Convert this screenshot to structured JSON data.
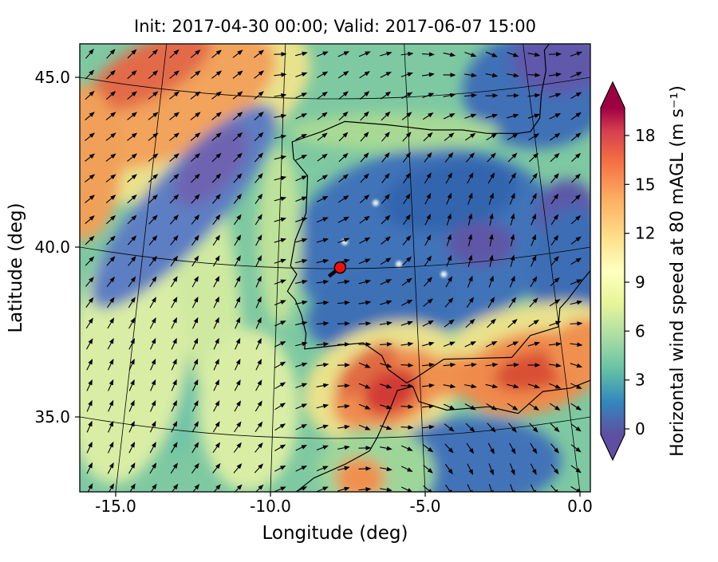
{
  "figure": {
    "title": "Init: 2017-04-30 00:00; Valid: 2017-06-07 15:00",
    "init_time": "2017-04-30 00:00",
    "valid_time": "2017-06-07 15:00",
    "xlabel": "Longitude (deg)",
    "ylabel": "Latitude (deg)"
  },
  "chart_data": {
    "type": "heatmap",
    "subtype": "geographic wind-speed map with quiver (wind vector) overlay over the Iberian Peninsula and NW Africa",
    "title": "Init: 2017-04-30 00:00; Valid: 2017-06-07 15:00",
    "xlabel": "Longitude (deg)",
    "ylabel": "Latitude (deg)",
    "xlim": [
      -16.2,
      0.35
    ],
    "ylim": [
      32.8,
      46.05
    ],
    "x_ticks": [
      -15.0,
      -10.0,
      -5.0,
      0.0
    ],
    "x_tick_labels": [
      "-15.0",
      "-10.0",
      "-5.0",
      "0.0"
    ],
    "y_ticks": [
      35.0,
      40.0,
      45.0
    ],
    "y_tick_labels": [
      "35.0",
      "40.0",
      "45.0"
    ],
    "grid": true,
    "legend_position": "right-colorbar",
    "colorbar": {
      "label": "Horizontal wind speed at 80 mAGL (m s⁻¹)",
      "units": "m s-1",
      "ticks": [
        0,
        3,
        6,
        9,
        12,
        15,
        18
      ],
      "tick_labels": [
        "0",
        "3",
        "6",
        "9",
        "12",
        "15",
        "18"
      ],
      "vmin": 0,
      "vmax": 19.7,
      "cmap": "Spectral_r",
      "extend": "both",
      "over_color": "#9e0142",
      "under_color": "#5e4fa2",
      "gradient": [
        [
          0.0,
          "#5e4fa2"
        ],
        [
          0.1,
          "#3288bd"
        ],
        [
          0.2,
          "#66c2a5"
        ],
        [
          0.3,
          "#abdda4"
        ],
        [
          0.4,
          "#e6f598"
        ],
        [
          0.5,
          "#ffffbf"
        ],
        [
          0.6,
          "#fee08b"
        ],
        [
          0.72,
          "#fdae61"
        ],
        [
          0.84,
          "#f46d43"
        ],
        [
          0.93,
          "#d53e4f"
        ],
        [
          1.0,
          "#9e0142"
        ]
      ]
    },
    "marker": {
      "name": "site-location",
      "lon": -7.75,
      "lat": 39.4,
      "color": "#f10e0e",
      "edge": "#000000"
    },
    "base_field": {
      "speed_ms": 5.5,
      "color": "#7ec9a2"
    },
    "field_regions": [
      {
        "name": "atlantic-teal-band",
        "lon": -13.4,
        "lat": 38.0,
        "rx_deg": 0.95,
        "ry_deg": 4.2,
        "rot_deg": -5,
        "color": "#6fc4a9",
        "speed_ms": 5
      },
      {
        "name": "atlantic-yellowgreen-west",
        "lon": -14.6,
        "lat": 36.8,
        "rx_deg": 1.9,
        "ry_deg": 3.8,
        "rot_deg": 8,
        "color": "#d9eda5",
        "speed_ms": 8
      },
      {
        "name": "atlantic-yellowgreen-mid",
        "lon": -12.1,
        "lat": 39.2,
        "rx_deg": 1.0,
        "ry_deg": 4.6,
        "rot_deg": -8,
        "color": "#cfe9a0",
        "speed_ms": 7.5
      },
      {
        "name": "atlantic-yellowgreen-south",
        "lon": -10.7,
        "lat": 35.2,
        "rx_deg": 1.6,
        "ry_deg": 2.4,
        "rot_deg": 0,
        "color": "#d9eda5",
        "speed_ms": 8
      },
      {
        "name": "nw-yellow-fringe",
        "lon": -12.9,
        "lat": 43.9,
        "rx_deg": 4.6,
        "ry_deg": 2.0,
        "rot_deg": -28,
        "color": "#e9e28c",
        "speed_ms": 10
      },
      {
        "name": "nw-orange-band",
        "lon": -13.1,
        "lat": 44.3,
        "rx_deg": 3.6,
        "ry_deg": 1.5,
        "rot_deg": -28,
        "color": "#f2a35c",
        "speed_ms": 13
      },
      {
        "name": "nw-orange-core",
        "lon": -13.9,
        "lat": 45.2,
        "rx_deg": 2.2,
        "ry_deg": 0.8,
        "rot_deg": -28,
        "color": "#e26a4a",
        "speed_ms": 15
      },
      {
        "name": "west-edge-orange",
        "lon": -16.1,
        "lat": 42.5,
        "rx_deg": 1.3,
        "ry_deg": 2.3,
        "rot_deg": 0,
        "color": "#f0a058",
        "speed_ms": 13
      },
      {
        "name": "nw-blue-band",
        "lon": -12.8,
        "lat": 41.2,
        "rx_deg": 4.3,
        "ry_deg": 1.1,
        "rot_deg": -48,
        "color": "#5d7ec2",
        "speed_ms": 3.5
      },
      {
        "name": "nw-purple-streak",
        "lon": -11.9,
        "lat": 42.4,
        "rx_deg": 1.6,
        "ry_deg": 0.7,
        "rot_deg": -48,
        "color": "#6e64b0",
        "speed_ms": 1.5
      },
      {
        "name": "iberia-interior-blue",
        "lon": -5.0,
        "lat": 40.2,
        "rx_deg": 4.4,
        "ry_deg": 2.7,
        "rot_deg": -8,
        "color": "#4173b8",
        "speed_ms": 3
      },
      {
        "name": "iberia-north-dark-blue",
        "lon": -4.2,
        "lat": 41.5,
        "rx_deg": 2.2,
        "ry_deg": 1.0,
        "rot_deg": -10,
        "color": "#3365ad",
        "speed_ms": 2
      },
      {
        "name": "iberia-purple-patch",
        "lon": -3.2,
        "lat": 40.1,
        "rx_deg": 1.1,
        "ry_deg": 0.65,
        "rot_deg": 0,
        "color": "#5f57a6",
        "speed_ms": 1
      },
      {
        "name": "southwest-iberia-blue",
        "lon": -6.5,
        "lat": 38.2,
        "rx_deg": 2.4,
        "ry_deg": 1.2,
        "rot_deg": -15,
        "color": "#3e70b5",
        "speed_ms": 3
      },
      {
        "name": "biscay-blue",
        "lon": -1.4,
        "lat": 44.6,
        "rx_deg": 2.4,
        "ry_deg": 1.7,
        "rot_deg": 0,
        "color": "#3f6fb6",
        "speed_ms": 3
      },
      {
        "name": "biscay-purple",
        "lon": -0.7,
        "lat": 45.5,
        "rx_deg": 1.5,
        "ry_deg": 1.0,
        "rot_deg": 0,
        "color": "#6058aa",
        "speed_ms": 1
      },
      {
        "name": "east-spain-purple",
        "lon": -0.4,
        "lat": 40.9,
        "rx_deg": 1.0,
        "ry_deg": 1.1,
        "rot_deg": 0,
        "color": "#5d58a9",
        "speed_ms": 1
      },
      {
        "name": "mediterranean-blue",
        "lon": -0.2,
        "lat": 39.0,
        "rx_deg": 1.4,
        "ry_deg": 2.2,
        "rot_deg": 0,
        "color": "#3e6db4",
        "speed_ms": 3
      },
      {
        "name": "north-coast-green",
        "lon": -6.0,
        "lat": 43.4,
        "rx_deg": 3.4,
        "ry_deg": 0.55,
        "rot_deg": 0,
        "color": "#a8d994",
        "speed_ms": 7
      },
      {
        "name": "portugal-coast-green",
        "lon": -9.7,
        "lat": 40.3,
        "rx_deg": 0.7,
        "ry_deg": 2.6,
        "rot_deg": 0,
        "color": "#bfe29a",
        "speed_ms": 7
      },
      {
        "name": "strait-yellow-halo",
        "lon": -6.3,
        "lat": 36.0,
        "rx_deg": 2.7,
        "ry_deg": 1.7,
        "rot_deg": -20,
        "color": "#e9e28c",
        "speed_ms": 10
      },
      {
        "name": "algeria-yellow-fringe",
        "lon": -1.6,
        "lat": 37.5,
        "rx_deg": 2.6,
        "ry_deg": 0.8,
        "rot_deg": -10,
        "color": "#e9e28c",
        "speed_ms": 10
      },
      {
        "name": "strait-orange-halo",
        "lon": -6.2,
        "lat": 35.8,
        "rx_deg": 1.9,
        "ry_deg": 1.1,
        "rot_deg": -25,
        "color": "#ef8c4f",
        "speed_ms": 13
      },
      {
        "name": "cadiz-orange-streak",
        "lon": -6.9,
        "lat": 36.4,
        "rx_deg": 1.2,
        "ry_deg": 0.5,
        "rot_deg": -40,
        "color": "#e06a42",
        "speed_ms": 14
      },
      {
        "name": "alboran-orange",
        "lon": -4.0,
        "lat": 36.2,
        "rx_deg": 1.7,
        "ry_deg": 0.6,
        "rot_deg": -5,
        "color": "#ef9050",
        "speed_ms": 13
      },
      {
        "name": "algeria-orange",
        "lon": -1.6,
        "lat": 36.3,
        "rx_deg": 2.3,
        "ry_deg": 1.2,
        "rot_deg": -12,
        "color": "#ef8a4c",
        "speed_ms": 13
      },
      {
        "name": "strait-red-core",
        "lon": -6.1,
        "lat": 35.75,
        "rx_deg": 0.95,
        "ry_deg": 0.6,
        "rot_deg": -30,
        "color": "#d23b34",
        "speed_ms": 17
      },
      {
        "name": "algeria-red-core",
        "lon": -1.5,
        "lat": 36.35,
        "rx_deg": 1.3,
        "ry_deg": 0.55,
        "rot_deg": -12,
        "color": "#d94f35",
        "speed_ms": 16
      },
      {
        "name": "east-edge-orange",
        "lon": 0.3,
        "lat": 36.9,
        "rx_deg": 1.3,
        "ry_deg": 1.0,
        "rot_deg": 0,
        "color": "#ef9050",
        "speed_ms": 13
      },
      {
        "name": "africa-interior-blue",
        "lon": -3.4,
        "lat": 33.7,
        "rx_deg": 2.8,
        "ry_deg": 1.3,
        "rot_deg": 0,
        "color": "#4273b8",
        "speed_ms": 3
      },
      {
        "name": "morocco-green",
        "lon": -6.6,
        "lat": 33.4,
        "rx_deg": 1.9,
        "ry_deg": 1.3,
        "rot_deg": 0,
        "color": "#9ed69a",
        "speed_ms": 7
      },
      {
        "name": "morocco-orange-spot",
        "lon": -7.1,
        "lat": 33.2,
        "rx_deg": 0.8,
        "ry_deg": 0.6,
        "rot_deg": 0,
        "color": "#ef9050",
        "speed_ms": 13
      }
    ],
    "lakes": [
      [
        -6.6,
        41.3
      ],
      [
        -5.85,
        39.5
      ],
      [
        -4.4,
        39.2
      ],
      [
        -7.6,
        40.15
      ]
    ],
    "wind_vectors": {
      "style": "black-quiver-arrows",
      "coverage": "full-domain-regular-grid",
      "note": "strong SW-NE flow over the Atlantic (arrows point northeast); weak variable flow over the Iberian interior; strong easterly jet through the Strait of Gibraltar and along the Algerian coast"
    },
    "geo": {
      "iberia_france_coast": [
        [
          0.33,
          39.3
        ],
        [
          0.1,
          39.05
        ],
        [
          -0.15,
          38.75
        ],
        [
          -0.4,
          38.45
        ],
        [
          -0.5,
          38.35
        ],
        [
          -0.65,
          38.2
        ],
        [
          -0.7,
          37.65
        ],
        [
          -1.6,
          37.4
        ],
        [
          -2.2,
          36.75
        ],
        [
          -3.5,
          36.72
        ],
        [
          -4.4,
          36.7
        ],
        [
          -5.35,
          36.12
        ],
        [
          -5.6,
          36.0
        ],
        [
          -6.2,
          36.4
        ],
        [
          -6.4,
          36.8
        ],
        [
          -7.0,
          37.18
        ],
        [
          -7.9,
          37.1
        ],
        [
          -8.9,
          37.0
        ],
        [
          -8.85,
          37.45
        ],
        [
          -9.0,
          38.0
        ],
        [
          -9.2,
          38.45
        ],
        [
          -9.45,
          38.7
        ],
        [
          -9.15,
          39.2
        ],
        [
          -9.35,
          39.45
        ],
        [
          -9.2,
          40.2
        ],
        [
          -8.85,
          41.0
        ],
        [
          -8.8,
          42.1
        ],
        [
          -9.25,
          42.6
        ],
        [
          -9.3,
          43.1
        ],
        [
          -8.35,
          43.4
        ],
        [
          -7.6,
          43.7
        ],
        [
          -6.2,
          43.6
        ],
        [
          -4.8,
          43.45
        ],
        [
          -3.8,
          43.45
        ],
        [
          -3.0,
          43.35
        ],
        [
          -2.0,
          43.35
        ],
        [
          -1.6,
          43.4
        ],
        [
          -1.3,
          43.8
        ],
        [
          -1.25,
          44.5
        ],
        [
          -1.1,
          45.2
        ],
        [
          -1.15,
          45.8
        ],
        [
          -0.9,
          46.1
        ]
      ],
      "africa_coast": [
        [
          0.4,
          36.1
        ],
        [
          -0.3,
          35.85
        ],
        [
          -1.2,
          35.75
        ],
        [
          -2.0,
          35.1
        ],
        [
          -2.95,
          35.3
        ],
        [
          -4.3,
          35.2
        ],
        [
          -5.2,
          35.45
        ],
        [
          -5.4,
          35.9
        ],
        [
          -5.9,
          35.78
        ],
        [
          -6.15,
          35.2
        ],
        [
          -6.55,
          34.4
        ],
        [
          -6.8,
          34.0
        ],
        [
          -7.6,
          33.6
        ],
        [
          -8.6,
          33.2
        ],
        [
          -9.3,
          32.7
        ]
      ]
    }
  }
}
